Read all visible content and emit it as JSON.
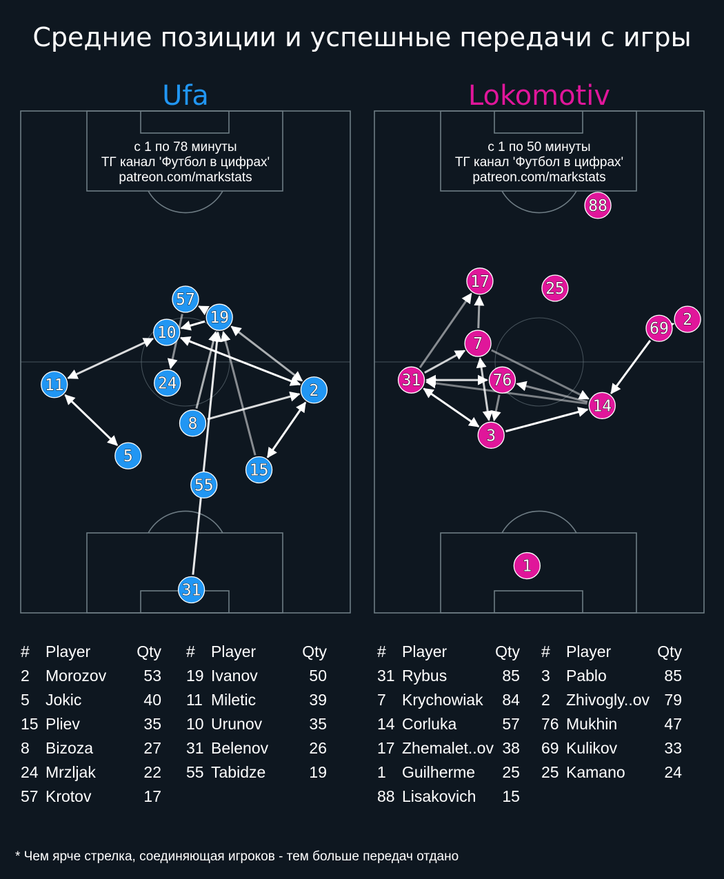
{
  "title": "Средние позиции и успешные передачи с игры",
  "footnote": "* Чем ярче стрелка, соединяющая игроков - тем больше передач отдано",
  "colors": {
    "background": "#0e1720",
    "lines": "#6e7c84",
    "ufa": "#2196f3",
    "lokomotiv": "#e0169a"
  },
  "teams": [
    {
      "name": "Ufa",
      "color": "#2196f3",
      "note": [
        "с 1 по 78 минуты",
        "ТГ канал 'Футбол в цифрах'",
        "patreon.com/markstats"
      ],
      "players": [
        {
          "n": "57",
          "x": 50.0,
          "y": 37.5
        },
        {
          "n": "19",
          "x": 60.3,
          "y": 41.1
        },
        {
          "n": "10",
          "x": 44.3,
          "y": 44.1
        },
        {
          "n": "24",
          "x": 44.5,
          "y": 54.2
        },
        {
          "n": "11",
          "x": 10.2,
          "y": 54.5
        },
        {
          "n": "2",
          "x": 89.0,
          "y": 55.6
        },
        {
          "n": "8",
          "x": 52.2,
          "y": 62.2
        },
        {
          "n": "5",
          "x": 32.6,
          "y": 68.7
        },
        {
          "n": "15",
          "x": 72.3,
          "y": 71.5
        },
        {
          "n": "55",
          "x": 55.6,
          "y": 74.5
        },
        {
          "n": "31",
          "x": 51.8,
          "y": 95.4
        }
      ],
      "passes": [
        {
          "from": "11",
          "to": "5",
          "o": 1.0,
          "both": true
        },
        {
          "from": "2",
          "to": "15",
          "o": 1.0,
          "both": true
        },
        {
          "from": "10",
          "to": "2",
          "o": 1.0,
          "both": true
        },
        {
          "from": "8",
          "to": "2",
          "o": 0.85,
          "both": false
        },
        {
          "from": "10",
          "to": "11",
          "o": 0.85,
          "both": true
        },
        {
          "from": "31",
          "to": "19",
          "o": 0.9,
          "both": false
        },
        {
          "from": "19",
          "to": "2",
          "o": 0.65,
          "both": true
        },
        {
          "from": "15",
          "to": "19",
          "o": 0.5,
          "both": false
        },
        {
          "from": "8",
          "to": "19",
          "o": 0.65,
          "both": false
        },
        {
          "from": "19",
          "to": "10",
          "o": 1.0,
          "both": false
        },
        {
          "from": "19",
          "to": "57",
          "o": 0.65,
          "both": false
        },
        {
          "from": "57",
          "to": "24",
          "o": 0.5,
          "both": false
        }
      ],
      "roster": [
        [
          {
            "num": "2",
            "name": "Morozov",
            "qty": "53"
          },
          {
            "num": "5",
            "name": "Jokic",
            "qty": "40"
          },
          {
            "num": "15",
            "name": "Pliev",
            "qty": "35"
          },
          {
            "num": "8",
            "name": "Bizoza",
            "qty": "27"
          },
          {
            "num": "24",
            "name": "Mrzljak",
            "qty": "22"
          },
          {
            "num": "57",
            "name": "Krotov",
            "qty": "17"
          }
        ],
        [
          {
            "num": "19",
            "name": "Ivanov",
            "qty": "50"
          },
          {
            "num": "11",
            "name": "Miletic",
            "qty": "39"
          },
          {
            "num": "10",
            "name": "Urunov",
            "qty": "35"
          },
          {
            "num": "31",
            "name": "Belenov",
            "qty": "26"
          },
          {
            "num": "55",
            "name": "Tabidze",
            "qty": "19"
          }
        ]
      ]
    },
    {
      "name": "Lokomotiv",
      "color": "#e0169a",
      "note": [
        "с 1 по 50 минуты",
        "ТГ канал 'Футбол в цифрах'",
        "patreon.com/markstats"
      ],
      "players": [
        {
          "n": "88",
          "x": 67.8,
          "y": 18.8
        },
        {
          "n": "17",
          "x": 32.0,
          "y": 33.9
        },
        {
          "n": "25",
          "x": 54.8,
          "y": 35.3
        },
        {
          "n": "2",
          "x": 95.0,
          "y": 41.5
        },
        {
          "n": "69",
          "x": 86.4,
          "y": 43.3
        },
        {
          "n": "7",
          "x": 31.4,
          "y": 46.3
        },
        {
          "n": "31",
          "x": 11.2,
          "y": 53.6
        },
        {
          "n": "76",
          "x": 38.8,
          "y": 53.6
        },
        {
          "n": "14",
          "x": 69.1,
          "y": 58.7
        },
        {
          "n": "3",
          "x": 35.4,
          "y": 64.6
        },
        {
          "n": "1",
          "x": 46.3,
          "y": 90.6
        }
      ],
      "passes": [
        {
          "from": "31",
          "to": "3",
          "o": 1.0,
          "both": true
        },
        {
          "from": "3",
          "to": "14",
          "o": 1.0,
          "both": false
        },
        {
          "from": "69",
          "to": "14",
          "o": 1.0,
          "both": false
        },
        {
          "from": "2",
          "to": "69",
          "o": 0.6,
          "both": false
        },
        {
          "from": "31",
          "to": "17",
          "o": 0.5,
          "both": false
        },
        {
          "from": "7",
          "to": "17",
          "o": 0.6,
          "both": false
        },
        {
          "from": "31",
          "to": "7",
          "o": 0.8,
          "both": false
        },
        {
          "from": "7",
          "to": "3",
          "o": 0.8,
          "both": true
        },
        {
          "from": "31",
          "to": "76",
          "o": 0.65,
          "both": false
        },
        {
          "from": "76",
          "to": "31",
          "o": 0.55,
          "both": false
        },
        {
          "from": "14",
          "to": "76",
          "o": 0.5,
          "both": false
        },
        {
          "from": "14",
          "to": "31",
          "o": 0.45,
          "both": false
        },
        {
          "from": "7",
          "to": "14",
          "o": 0.45,
          "both": false
        },
        {
          "from": "76",
          "to": "3",
          "o": 0.5,
          "both": false
        }
      ],
      "roster": [
        [
          {
            "num": "31",
            "name": "Rybus",
            "qty": "85"
          },
          {
            "num": "7",
            "name": "Krychowiak",
            "qty": "84"
          },
          {
            "num": "14",
            "name": "Corluka",
            "qty": "57"
          },
          {
            "num": "17",
            "name": "Zhemalet..ov",
            "qty": "38"
          },
          {
            "num": "1",
            "name": "Guilherme",
            "qty": "25"
          },
          {
            "num": "88",
            "name": "Lisakovich",
            "qty": "15"
          }
        ],
        [
          {
            "num": "3",
            "name": "Pablo",
            "qty": "85"
          },
          {
            "num": "2",
            "name": "Zhivogly..ov",
            "qty": "79"
          },
          {
            "num": "76",
            "name": "Mukhin",
            "qty": "47"
          },
          {
            "num": "69",
            "name": "Kulikov",
            "qty": "33"
          },
          {
            "num": "25",
            "name": "Kamano",
            "qty": "24"
          }
        ]
      ]
    }
  ],
  "headers": {
    "num": "#",
    "player": "Player",
    "qty": "Qty"
  }
}
